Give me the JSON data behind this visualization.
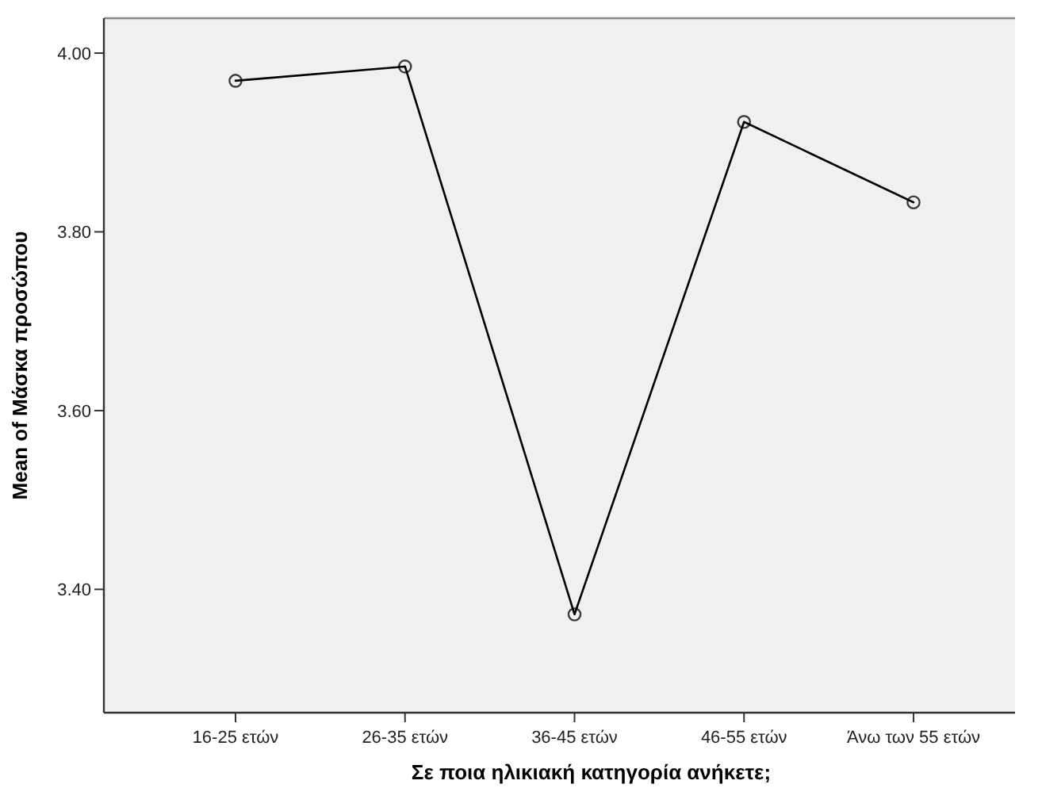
{
  "chart_data": {
    "type": "line",
    "xlabel": "Σε ποια ηλικιακή κατηγορία ανήκετε;",
    "ylabel": "Mean of Μάσκα προσώπου",
    "categories": [
      "16-25 ετών",
      "26-35 ετών",
      "36-45 ετών",
      "46-55 ετών",
      "Άνω των 55 ετών"
    ],
    "series": [
      {
        "color": "#000000",
        "values": [
          3.969,
          3.985,
          3.372,
          3.923,
          3.833
        ]
      }
    ],
    "ylim": [
      3.262,
      4.039
    ],
    "yticks": [
      {
        "value": 3.4,
        "label": "3.40"
      },
      {
        "value": 3.6,
        "label": "3.60"
      },
      {
        "value": 3.8,
        "label": "3.80"
      },
      {
        "value": 4.0,
        "label": "4.00"
      }
    ],
    "marker": "circle",
    "line_style": "solid",
    "grid": false
  }
}
